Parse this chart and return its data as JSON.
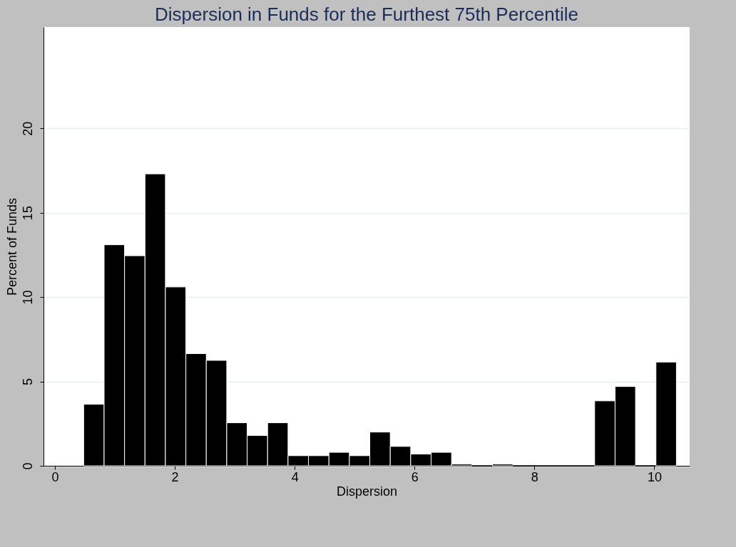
{
  "chart_data": {
    "type": "histogram",
    "title": "Dispersion in Funds for the Furthest 75th Percentile",
    "xlabel": "Dispersion",
    "ylabel": "Percent of Funds",
    "bins": [
      0.48,
      0.821,
      1.162,
      1.503,
      1.844,
      2.185,
      2.526,
      2.867,
      3.208,
      3.549,
      3.89,
      4.231,
      4.572,
      4.913,
      5.254,
      5.595,
      5.936,
      6.277,
      6.618,
      6.959,
      7.3,
      7.641,
      7.982,
      8.323,
      8.664,
      9.005,
      9.346,
      9.687,
      10.028,
      10.369
    ],
    "values": [
      3.65,
      13.1,
      12.45,
      17.3,
      10.6,
      6.65,
      6.25,
      2.55,
      1.8,
      2.55,
      0.6,
      0.6,
      0.8,
      0.6,
      2.0,
      1.15,
      0.7,
      0.8,
      0.1,
      0,
      0.1,
      0,
      0,
      0,
      0,
      3.85,
      4.7,
      0,
      6.15
    ],
    "color": "#000000",
    "xlim": [
      -0.19,
      10.59
    ],
    "ylim": [
      0,
      26
    ],
    "xticks": [
      0,
      2,
      4,
      6,
      8,
      10
    ],
    "yticks": [
      0,
      5,
      10,
      15,
      20
    ],
    "grid": "y"
  }
}
